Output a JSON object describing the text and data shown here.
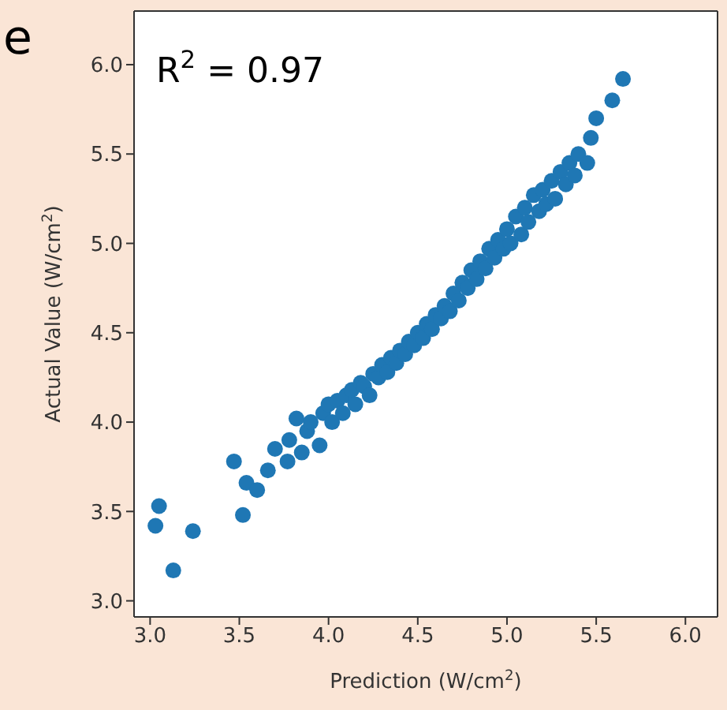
{
  "chart_data": {
    "type": "scatter",
    "xlabel": "Prediction (W/cm$^{2}$)",
    "ylabel": "Actual Value (W/cm$^{2}$)",
    "annotations": [
      "e",
      "R$^{2}$ = 0.97"
    ],
    "xlim": [
      2.91,
      6.18
    ],
    "ylim": [
      2.91,
      6.3
    ],
    "xticks": [
      {
        "value": 3,
        "label": "3.0"
      },
      {
        "value": 3.5,
        "label": "3.5"
      },
      {
        "value": 4,
        "label": "4.0"
      },
      {
        "value": 4.5,
        "label": "4.5"
      },
      {
        "value": 5,
        "label": "5.0"
      },
      {
        "value": 5.5,
        "label": "5.5"
      },
      {
        "value": 6,
        "label": "6.0"
      }
    ],
    "yticks": [
      {
        "value": 3,
        "label": "3.0"
      },
      {
        "value": 3.5,
        "label": "3.5"
      },
      {
        "value": 4,
        "label": "4.0"
      },
      {
        "value": 4.5,
        "label": "4.5"
      },
      {
        "value": 5,
        "label": "5.0"
      },
      {
        "value": 5.5,
        "label": "5.5"
      },
      {
        "value": 6,
        "label": "6.0"
      }
    ],
    "marker": "circle",
    "series": [
      {
        "color": "#1f77b4",
        "x": [
          3.03,
          3.05,
          3.13,
          3.24,
          3.47,
          3.52,
          3.54,
          3.6,
          3.66,
          3.7,
          3.77,
          3.78,
          3.82,
          3.85,
          3.88,
          3.9,
          3.95,
          3.97,
          4.0,
          4.02,
          4.05,
          4.08,
          4.1,
          4.13,
          4.15,
          4.18,
          4.2,
          4.23,
          4.25,
          4.28,
          4.3,
          4.33,
          4.35,
          4.38,
          4.4,
          4.43,
          4.45,
          4.48,
          4.5,
          4.53,
          4.55,
          4.58,
          4.6,
          4.63,
          4.65,
          4.68,
          4.7,
          4.73,
          4.75,
          4.78,
          4.8,
          4.83,
          4.85,
          4.88,
          4.9,
          4.93,
          4.95,
          4.98,
          5.0,
          5.02,
          5.05,
          5.08,
          5.1,
          5.12,
          5.15,
          5.18,
          5.2,
          5.22,
          5.25,
          5.27,
          5.3,
          5.33,
          5.35,
          5.38,
          5.4,
          5.45,
          5.47,
          5.5,
          5.59,
          5.65
        ],
        "values": [
          3.42,
          3.53,
          3.17,
          3.39,
          3.78,
          3.48,
          3.66,
          3.62,
          3.73,
          3.85,
          3.78,
          3.9,
          4.02,
          3.83,
          3.95,
          4.0,
          3.87,
          4.05,
          4.1,
          4.0,
          4.12,
          4.05,
          4.15,
          4.18,
          4.1,
          4.22,
          4.2,
          4.15,
          4.27,
          4.25,
          4.32,
          4.28,
          4.36,
          4.33,
          4.4,
          4.38,
          4.45,
          4.43,
          4.5,
          4.47,
          4.55,
          4.52,
          4.6,
          4.58,
          4.65,
          4.62,
          4.72,
          4.68,
          4.78,
          4.75,
          4.85,
          4.8,
          4.9,
          4.86,
          4.97,
          4.92,
          5.02,
          4.97,
          5.08,
          5.0,
          5.15,
          5.05,
          5.2,
          5.12,
          5.27,
          5.18,
          5.3,
          5.22,
          5.35,
          5.25,
          5.4,
          5.33,
          5.45,
          5.38,
          5.5,
          5.45,
          5.59,
          5.7,
          5.8,
          5.92
        ]
      }
    ]
  }
}
